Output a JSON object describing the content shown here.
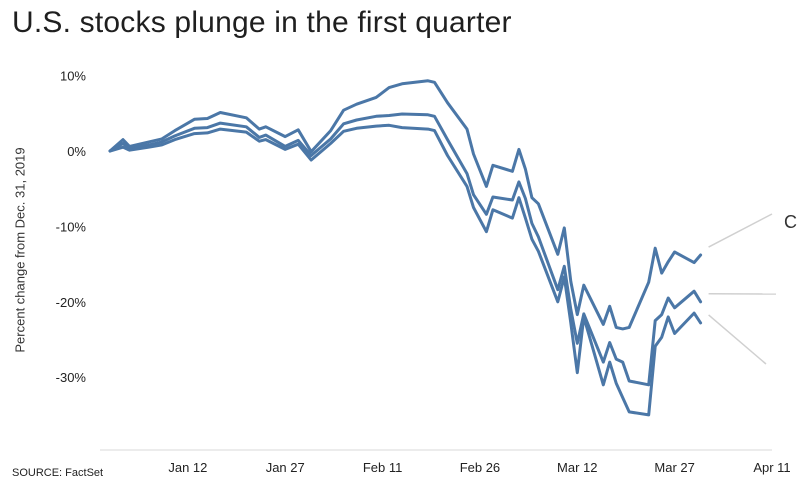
{
  "chart_data": {
    "type": "line",
    "title": "U.S. stocks plunge in the first quarter",
    "xlabel": "",
    "ylabel": "Percent change from Dec. 31, 2019",
    "source": "SOURCE: FactSet",
    "ylim": [
      -37,
      11
    ],
    "yticks": [
      {
        "value": 10,
        "label": "10%"
      },
      {
        "value": 0,
        "label": "0%"
      },
      {
        "value": -10,
        "label": "-10%"
      },
      {
        "value": -20,
        "label": "-20%"
      },
      {
        "value": -30,
        "label": "-30%"
      }
    ],
    "xlim": [
      "2019-12-31",
      "2020-04-11"
    ],
    "xticks": [
      {
        "date": "2020-01-12",
        "label": "Jan 12"
      },
      {
        "date": "2020-01-27",
        "label": "Jan 27"
      },
      {
        "date": "2020-02-11",
        "label": "Feb 11"
      },
      {
        "date": "2020-02-26",
        "label": "Feb 26"
      },
      {
        "date": "2020-03-12",
        "label": "Mar 12"
      },
      {
        "date": "2020-03-27",
        "label": "Mar 27"
      },
      {
        "date": "2020-04-11",
        "label": "Apr 11"
      }
    ],
    "annotation_partial": "C",
    "grid": false,
    "color": "#4b77a7",
    "series": [
      {
        "x": [
          "2019-12-31",
          "2020-01-02",
          "2020-01-03",
          "2020-01-06",
          "2020-01-08",
          "2020-01-10",
          "2020-01-13",
          "2020-01-15",
          "2020-01-17",
          "2020-01-21",
          "2020-01-23",
          "2020-01-24",
          "2020-01-27",
          "2020-01-29",
          "2020-01-31",
          "2020-02-03",
          "2020-02-05",
          "2020-02-07",
          "2020-02-10",
          "2020-02-12",
          "2020-02-14",
          "2020-02-18",
          "2020-02-19",
          "2020-02-21",
          "2020-02-24",
          "2020-02-25",
          "2020-02-27",
          "2020-02-28",
          "2020-03-02",
          "2020-03-03",
          "2020-03-04",
          "2020-03-05",
          "2020-03-06",
          "2020-03-09",
          "2020-03-10",
          "2020-03-11",
          "2020-03-12",
          "2020-03-13",
          "2020-03-16",
          "2020-03-17",
          "2020-03-18",
          "2020-03-19",
          "2020-03-20",
          "2020-03-23",
          "2020-03-24",
          "2020-03-25",
          "2020-03-26",
          "2020-03-27",
          "2020-03-30",
          "2020-03-31"
        ],
        "values": [
          0.0,
          1.5,
          0.6,
          1.2,
          1.6,
          2.7,
          4.2,
          4.3,
          5.1,
          4.4,
          2.9,
          3.2,
          1.9,
          2.8,
          -0.1,
          2.7,
          5.4,
          6.2,
          7.1,
          8.4,
          8.9,
          9.3,
          9.1,
          6.4,
          2.9,
          -0.4,
          -4.7,
          -1.9,
          -2.7,
          0.2,
          -2.4,
          -6.2,
          -7.0,
          -13.7,
          -10.2,
          -17.3,
          -21.7,
          -17.8,
          -23.0,
          -20.6,
          -23.4,
          -23.6,
          -23.4,
          -17.4,
          -12.9,
          -16.2,
          -14.7,
          -13.4,
          -14.8,
          -13.8
        ]
      },
      {
        "x": [
          "2019-12-31",
          "2020-01-02",
          "2020-01-03",
          "2020-01-06",
          "2020-01-08",
          "2020-01-10",
          "2020-01-13",
          "2020-01-15",
          "2020-01-17",
          "2020-01-21",
          "2020-01-23",
          "2020-01-24",
          "2020-01-27",
          "2020-01-29",
          "2020-01-31",
          "2020-02-03",
          "2020-02-05",
          "2020-02-07",
          "2020-02-10",
          "2020-02-12",
          "2020-02-14",
          "2020-02-18",
          "2020-02-19",
          "2020-02-21",
          "2020-02-24",
          "2020-02-25",
          "2020-02-27",
          "2020-02-28",
          "2020-03-02",
          "2020-03-03",
          "2020-03-04",
          "2020-03-05",
          "2020-03-06",
          "2020-03-09",
          "2020-03-10",
          "2020-03-11",
          "2020-03-12",
          "2020-03-13",
          "2020-03-16",
          "2020-03-17",
          "2020-03-18",
          "2020-03-19",
          "2020-03-20",
          "2020-03-23",
          "2020-03-24",
          "2020-03-25",
          "2020-03-26",
          "2020-03-27",
          "2020-03-30",
          "2020-03-31"
        ],
        "values": [
          0.0,
          1.0,
          0.3,
          0.8,
          1.2,
          2.0,
          3.0,
          3.1,
          3.7,
          3.2,
          1.8,
          2.1,
          0.6,
          1.4,
          -0.6,
          1.6,
          3.6,
          4.1,
          4.6,
          4.7,
          4.9,
          4.8,
          4.6,
          1.5,
          -3.0,
          -5.8,
          -8.4,
          -6.1,
          -6.5,
          -4.1,
          -6.3,
          -9.6,
          -11.4,
          -18.4,
          -15.3,
          -21.0,
          -25.5,
          -21.6,
          -28.0,
          -25.4,
          -27.6,
          -28.0,
          -30.5,
          -31.0,
          -22.5,
          -21.7,
          -19.5,
          -20.8,
          -18.6,
          -20.0
        ]
      },
      {
        "x": [
          "2019-12-31",
          "2020-01-02",
          "2020-01-03",
          "2020-01-06",
          "2020-01-08",
          "2020-01-10",
          "2020-01-13",
          "2020-01-15",
          "2020-01-17",
          "2020-01-21",
          "2020-01-23",
          "2020-01-24",
          "2020-01-27",
          "2020-01-29",
          "2020-01-31",
          "2020-02-03",
          "2020-02-05",
          "2020-02-07",
          "2020-02-10",
          "2020-02-12",
          "2020-02-14",
          "2020-02-18",
          "2020-02-19",
          "2020-02-21",
          "2020-02-24",
          "2020-02-25",
          "2020-02-27",
          "2020-02-28",
          "2020-03-02",
          "2020-03-03",
          "2020-03-04",
          "2020-03-05",
          "2020-03-06",
          "2020-03-09",
          "2020-03-10",
          "2020-03-11",
          "2020-03-12",
          "2020-03-13",
          "2020-03-16",
          "2020-03-17",
          "2020-03-18",
          "2020-03-19",
          "2020-03-20",
          "2020-03-23",
          "2020-03-24",
          "2020-03-25",
          "2020-03-26",
          "2020-03-27",
          "2020-03-30",
          "2020-03-31"
        ],
        "values": [
          0.0,
          0.5,
          0.1,
          0.5,
          0.8,
          1.5,
          2.3,
          2.4,
          2.9,
          2.5,
          1.3,
          1.5,
          0.2,
          0.9,
          -1.2,
          1.0,
          2.6,
          3.0,
          3.3,
          3.4,
          3.1,
          2.9,
          2.7,
          -0.6,
          -4.7,
          -7.5,
          -10.7,
          -7.8,
          -8.9,
          -6.2,
          -8.9,
          -11.7,
          -13.3,
          -20.0,
          -16.7,
          -22.8,
          -29.4,
          -22.0,
          -31.0,
          -28.0,
          -30.8,
          -32.7,
          -34.6,
          -35.0,
          -25.9,
          -24.7,
          -22.0,
          -24.2,
          -21.5,
          -22.8
        ]
      }
    ]
  }
}
